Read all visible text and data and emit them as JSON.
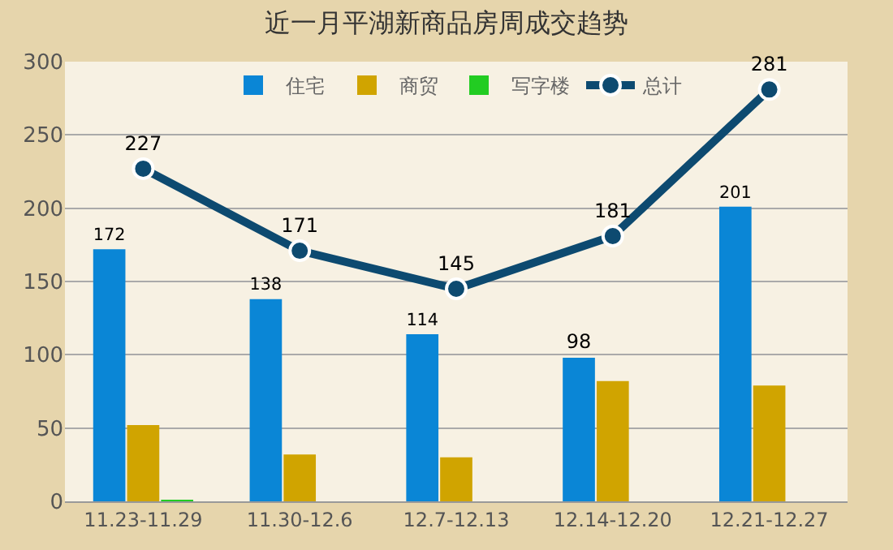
{
  "chart_data": {
    "type": "bar",
    "title": "近一月平湖新商品房周成交趋势",
    "categories": [
      "11.23-11.29",
      "11.30-12.6",
      "12.7-12.13",
      "12.14-12.20",
      "12.21-12.27"
    ],
    "series": [
      {
        "name": "住宅",
        "color": "#0a86d6",
        "values": [
          172,
          138,
          114,
          98,
          201
        ],
        "value_labels": [
          "172",
          "138",
          "114",
          "98",
          "201"
        ]
      },
      {
        "name": "商贸",
        "color": "#d0a400",
        "values": [
          52,
          32,
          30,
          82,
          79
        ]
      },
      {
        "name": "写字楼",
        "color": "#22cc22",
        "values": [
          1,
          0,
          0,
          0,
          0
        ]
      },
      {
        "name": "总计",
        "type": "line",
        "color": "#0d4a70",
        "marker": "circle",
        "values": [
          227,
          171,
          145,
          181,
          281
        ],
        "value_labels": [
          "227",
          "171",
          "145",
          "181",
          "281"
        ]
      }
    ],
    "ylim": [
      0,
      300
    ],
    "yticks": [
      0,
      50,
      100,
      150,
      200,
      250,
      300
    ],
    "grid": "y",
    "legend": "top"
  }
}
